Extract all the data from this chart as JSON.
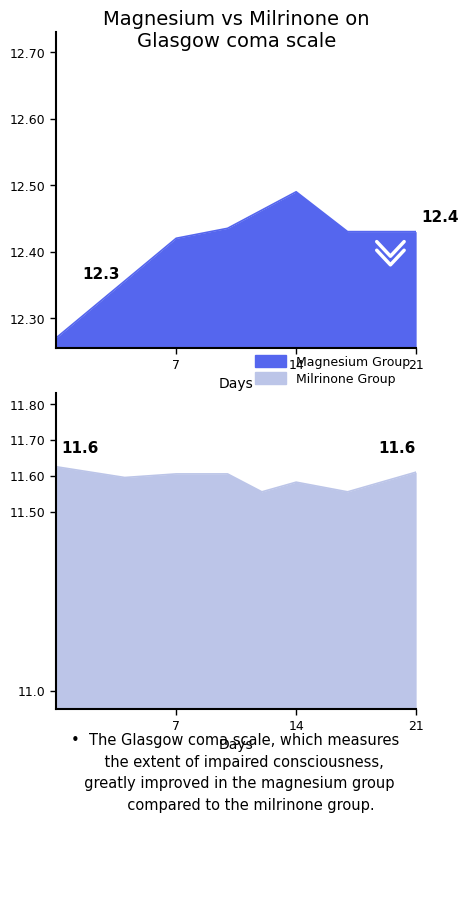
{
  "title": "Magnesium vs Milrinone on\nGlasgow coma scale",
  "title_fontsize": 14,
  "mag_x": [
    0,
    7,
    10,
    14,
    17,
    21
  ],
  "mag_y": [
    12.27,
    12.42,
    12.435,
    12.49,
    12.43,
    12.43
  ],
  "mag_color": "#5566ee",
  "mag_label": "Magnesium Group",
  "mag_annot_start": "12.3",
  "mag_annot_end": "12.4",
  "mag_xlim": [
    0,
    21
  ],
  "mag_ylim": [
    12.255,
    12.73
  ],
  "mag_yticks": [
    12.3,
    12.4,
    12.5,
    12.6,
    12.7
  ],
  "mag_ytick_labels": [
    "12.30",
    "12.40",
    "12.50",
    "12.60",
    "12.70"
  ],
  "mil_x": [
    0,
    4,
    7,
    10,
    12,
    14,
    17,
    21
  ],
  "mil_y": [
    11.625,
    11.595,
    11.605,
    11.605,
    11.555,
    11.582,
    11.555,
    11.61
  ],
  "mil_color": "#bcc5e8",
  "mil_label": "Milrinone Group",
  "mil_annot_start": "11.6",
  "mil_annot_end": "11.6",
  "mil_xlim": [
    0,
    21
  ],
  "mil_ylim": [
    10.95,
    11.83
  ],
  "mil_yticks": [
    11.0,
    11.5,
    11.6,
    11.7,
    11.8
  ],
  "mil_ytick_labels": [
    "11.0",
    "11.50",
    "11.60",
    "11.70",
    "11.80"
  ],
  "xlabel": "Days",
  "xticks": [
    7,
    14,
    21
  ],
  "footnote_line1": "•  The Glasgow coma scale, which measures",
  "footnote_line2": "    the extent of impaired consciousness,",
  "footnote_line3": "  greatly improved in the magnesium group",
  "footnote_line4": "       compared to the milrinone group.",
  "footnote_fontsize": 10.5
}
